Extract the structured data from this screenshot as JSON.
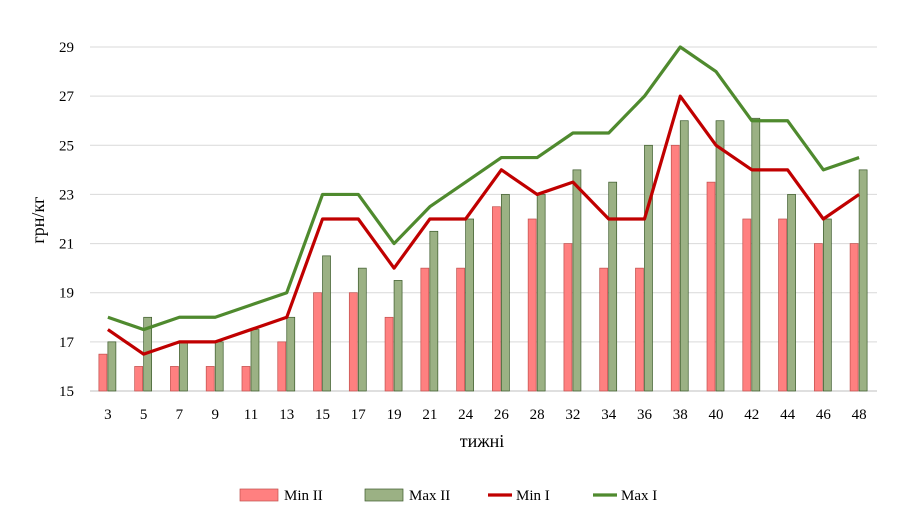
{
  "chart_data": {
    "type": "bar",
    "categories": [
      "3",
      "5",
      "7",
      "9",
      "11",
      "13",
      "15",
      "17",
      "19",
      "21",
      "24",
      "26",
      "28",
      "32",
      "34",
      "36",
      "38",
      "40",
      "42",
      "44",
      "46",
      "48"
    ],
    "series": [
      {
        "name": "Min II",
        "type": "bar",
        "color": "#ff8080",
        "values": [
          16.5,
          16,
          16,
          16,
          16,
          17,
          19,
          19,
          18,
          20,
          20,
          22.5,
          22,
          21,
          20,
          20,
          25,
          23.5,
          22,
          22,
          21,
          21
        ]
      },
      {
        "name": "Max II",
        "type": "bar",
        "color": "#9bb184",
        "values": [
          17,
          18,
          17,
          17,
          17.5,
          18,
          20.5,
          20,
          19.5,
          21.5,
          22,
          23,
          23,
          24,
          23.5,
          25,
          26,
          26,
          26.1,
          23,
          22,
          24
        ]
      },
      {
        "name": "Min I",
        "type": "line",
        "color": "#c00000",
        "values": [
          17.5,
          16.5,
          17,
          17,
          17.5,
          18,
          22,
          22,
          20,
          22,
          22,
          24,
          23,
          23.5,
          22,
          22,
          27,
          25,
          24,
          24,
          22,
          23
        ]
      },
      {
        "name": "Max I",
        "type": "line",
        "color": "#4f8a2e",
        "values": [
          18,
          17.5,
          18,
          18,
          18.5,
          19,
          23,
          23,
          21,
          22.5,
          23.5,
          24.5,
          24.5,
          25.5,
          25.5,
          27,
          29,
          28,
          26,
          26,
          24,
          24.5
        ]
      }
    ],
    "title": "",
    "xlabel": "тижні",
    "ylabel": "грн/кг",
    "ylim": [
      15,
      29
    ],
    "yticks": [
      15,
      17,
      19,
      21,
      23,
      25,
      27,
      29
    ],
    "grid": true,
    "legend": "bottom"
  }
}
